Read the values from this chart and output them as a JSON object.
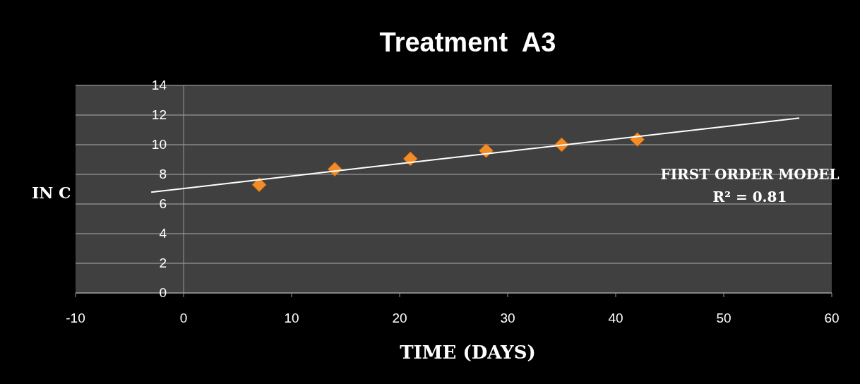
{
  "chart_data": {
    "type": "scatter",
    "title": "Treatment  A3",
    "xlabel": "TIME (DAYS)",
    "ylabel": "IN C",
    "xlim": [
      -10,
      60
    ],
    "xticks": [
      -10,
      0,
      10,
      20,
      30,
      40,
      50,
      60
    ],
    "ylim": [
      0,
      14
    ],
    "yticks": [
      0,
      2,
      4,
      6,
      8,
      10,
      12,
      14
    ],
    "grid": "y",
    "marker": "diamond",
    "annotations": [
      "FIRST ORDER MODEL",
      "R² = 0.81"
    ],
    "series": [
      {
        "color": "#f28c28",
        "x": [
          7,
          14,
          21,
          28,
          35,
          42
        ],
        "values": [
          7.3,
          8.35,
          9.05,
          9.6,
          10.0,
          10.35
        ]
      },
      {
        "type": "line",
        "color": "#ffffff",
        "marker": "none",
        "line_style": "solid",
        "x": [
          -3,
          57
        ],
        "values": [
          6.8,
          11.8
        ]
      }
    ]
  }
}
